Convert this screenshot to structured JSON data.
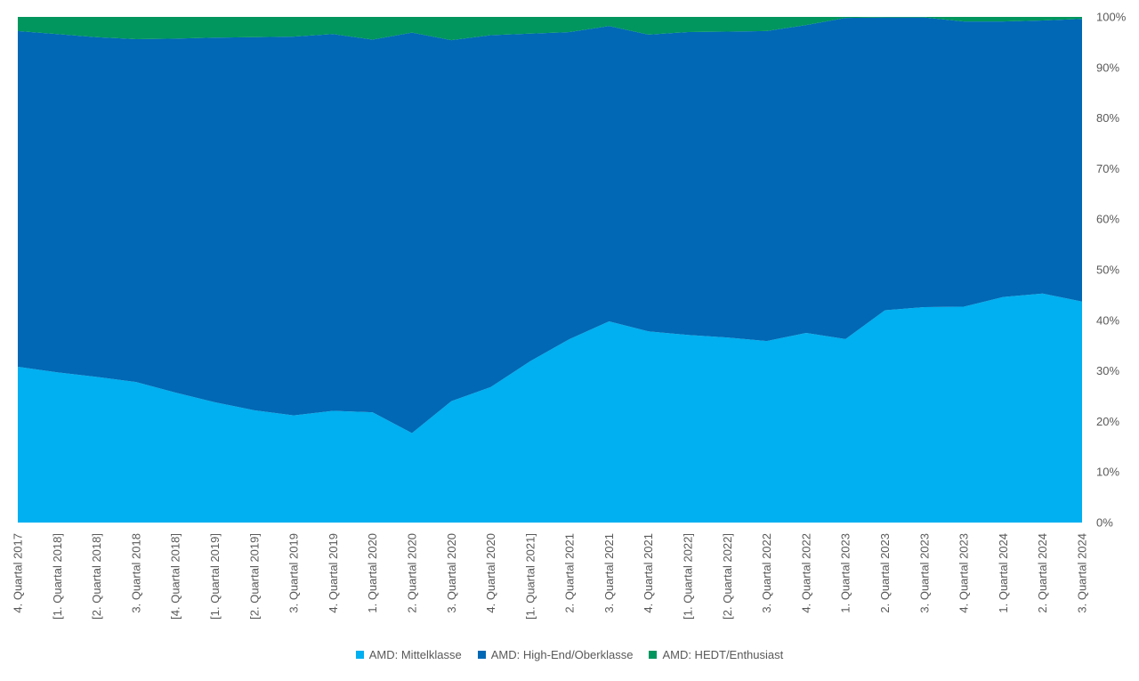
{
  "chart_data": {
    "type": "area",
    "stacked": true,
    "percent_stacked": true,
    "x": [
      "4. Quartal 2017",
      "[1. Quartal 2018]",
      "[2. Quartal 2018]",
      "3. Quartal 2018",
      "[4. Quartal 2018]",
      "[1. Quartal 2019]",
      "[2. Quartal 2019]",
      "3. Quartal 2019",
      "4. Quartal 2019",
      "1. Quartal 2020",
      "2. Quartal 2020",
      "3. Quartal 2020",
      "4. Quartal 2020",
      "[1. Quartal 2021]",
      "2. Quartal 2021",
      "3. Quartal 2021",
      "4. Quartal 2021",
      "[1. Quartal 2022]",
      "[2. Quartal 2022]",
      "3. Quartal 2022",
      "4. Quartal 2022",
      "1. Quartal 2023",
      "2. Quartal 2023",
      "3. Quartal 2023",
      "4. Quartal 2023",
      "1. Quartal 2024",
      "2. Quartal 2024",
      "3. Quartal 2024"
    ],
    "series": [
      {
        "name": "AMD: Mittelklasse",
        "color": "#00b0f0",
        "values": [
          30.8,
          29.7,
          28.8,
          27.8,
          25.7,
          23.8,
          22.2,
          21.2,
          22.1,
          21.8,
          17.7,
          24.0,
          26.8,
          31.9,
          36.3,
          39.8,
          37.8,
          37.1,
          36.6,
          35.9,
          37.5,
          36.3,
          42.0,
          42.6,
          42.7,
          44.6,
          45.3,
          43.7
        ]
      },
      {
        "name": "AMD: High-End/Oberklasse",
        "color": "#0068b5",
        "values": [
          66.4,
          66.9,
          67.2,
          67.8,
          70.0,
          72.1,
          73.8,
          74.9,
          74.5,
          73.7,
          79.2,
          71.4,
          69.6,
          64.8,
          60.7,
          58.4,
          58.7,
          59.9,
          60.5,
          61.3,
          60.9,
          63.5,
          57.9,
          57.3,
          56.4,
          54.5,
          54.0,
          55.9
        ]
      },
      {
        "name": "AMD: HEDT/Enthusiast",
        "color": "#00965e",
        "values": [
          2.8,
          3.4,
          4.0,
          4.4,
          4.3,
          4.1,
          4.0,
          3.9,
          3.4,
          4.5,
          3.1,
          4.6,
          3.6,
          3.3,
          3.0,
          1.8,
          3.5,
          3.0,
          2.9,
          2.8,
          1.6,
          0.2,
          0.1,
          0.1,
          0.9,
          0.9,
          0.7,
          0.4
        ]
      }
    ],
    "y_axis": {
      "position": "right",
      "ylim": [
        0,
        100
      ],
      "ticks": [
        "0%",
        "10%",
        "20%",
        "30%",
        "40%",
        "50%",
        "60%",
        "70%",
        "80%",
        "90%",
        "100%"
      ]
    },
    "grid": false,
    "legend_position": "bottom"
  }
}
